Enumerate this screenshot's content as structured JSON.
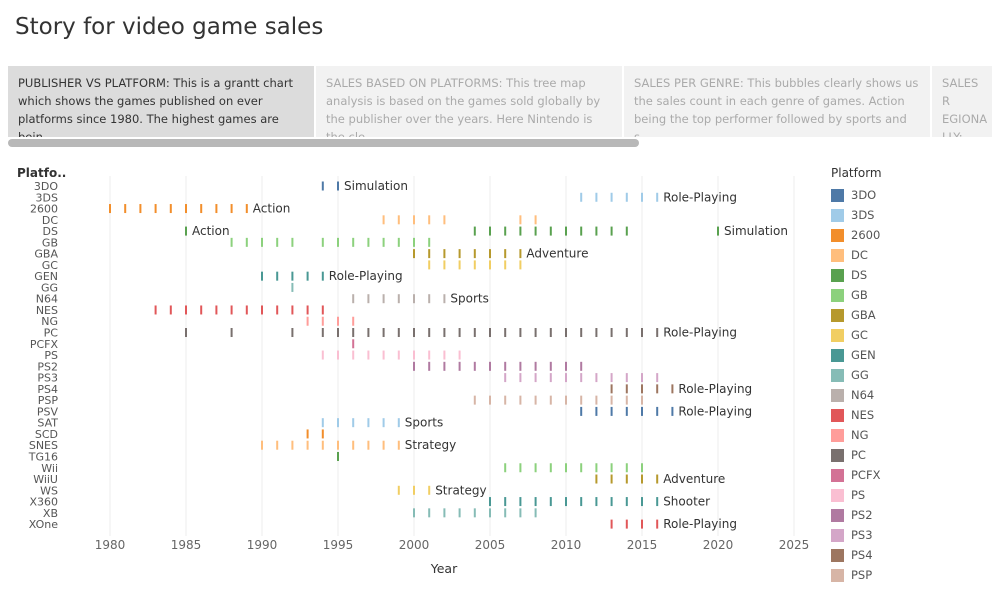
{
  "page": {
    "title": "Story for video game sales"
  },
  "tabs": [
    {
      "text": "PUBLISHER VS PLATFORM: This is a grantt chart which shows the games published on ever platforms since 1980. The highest games are bein..",
      "active": true
    },
    {
      "text": "SALES BASED ON PLATFORMS: This tree map analysis is based on the games sold globally by the publisher over the years. Here Nintendo is the cle..",
      "active": false
    },
    {
      "text": "SALES PER GENRE: This bubbles clearly shows us the sales count in each  genre of games. Action being the top performer followed by sports and s..",
      "active": false
    },
    {
      "text": "SALES R EGIONA LLY: Th..",
      "active": false
    }
  ],
  "legend": {
    "title": "Platform",
    "items": [
      "3DO",
      "3DS",
      "2600",
      "DC",
      "DS",
      "GB",
      "GBA",
      "GC",
      "GEN",
      "GG",
      "N64",
      "NES",
      "NG",
      "PC",
      "PCFX",
      "PS",
      "PS2",
      "PS3",
      "PS4",
      "PSP"
    ]
  },
  "chart_data": {
    "type": "gantt",
    "ylabel": "Platfo..",
    "xlabel": "Year",
    "xlim": [
      1977,
      2027
    ],
    "xticks": [
      1980,
      1985,
      1990,
      1995,
      2000,
      2005,
      2010,
      2015,
      2020,
      2025
    ],
    "grid": true,
    "legend_position": "right",
    "platforms": [
      "3DO",
      "3DS",
      "2600",
      "DC",
      "DS",
      "GB",
      "GBA",
      "GC",
      "GEN",
      "GG",
      "N64",
      "NES",
      "NG",
      "PC",
      "PCFX",
      "PS",
      "PS2",
      "PS3",
      "PS4",
      "PSP",
      "PSV",
      "SAT",
      "SCD",
      "SNES",
      "TG16",
      "Wii",
      "WiiU",
      "WS",
      "X360",
      "XB",
      "XOne"
    ],
    "colors": {
      "3DO": "#4e79a7",
      "3DS": "#a0cbe8",
      "2600": "#f28e2b",
      "DC": "#ffbe7d",
      "DS": "#59a14f",
      "GB": "#8cd17d",
      "GBA": "#b6992d",
      "GC": "#f1ce63",
      "GEN": "#499894",
      "GG": "#86bcb6",
      "N64": "#bab0ac",
      "NES": "#e15759",
      "NG": "#ff9d9a",
      "PC": "#79706e",
      "PCFX": "#d37295",
      "PS": "#fabfd2",
      "PS2": "#b07aa1",
      "PS3": "#d4a6c8",
      "PS4": "#9d7660",
      "PSP": "#d7b5a6",
      "PSV": "#4e79a7",
      "SAT": "#a0cbe8",
      "SCD": "#f28e2b",
      "SNES": "#ffbe7d",
      "TG16": "#59a14f",
      "Wii": "#8cd17d",
      "WiiU": "#b6992d",
      "WS": "#f1ce63",
      "X360": "#499894",
      "XB": "#86bcb6",
      "XOne": "#e15759"
    },
    "rows": [
      {
        "platform": "3DO",
        "years": [
          1994,
          1995
        ],
        "label": "Simulation"
      },
      {
        "platform": "3DS",
        "years": [
          2011,
          2012,
          2013,
          2014,
          2015,
          2016
        ],
        "label": "Role-Playing"
      },
      {
        "platform": "2600",
        "years": [
          1980,
          1981,
          1982,
          1983,
          1984,
          1985,
          1986,
          1987,
          1988,
          1989
        ],
        "label": "Action"
      },
      {
        "platform": "DC",
        "years": [
          1998,
          1999,
          2000,
          2001,
          2002,
          2007,
          2008
        ],
        "label": ""
      },
      {
        "platform": "DS",
        "years": [
          1985,
          2004,
          2005,
          2006,
          2007,
          2008,
          2009,
          2010,
          2011,
          2012,
          2013,
          2014,
          2020
        ],
        "label": "Action",
        "extra_labels": [
          {
            "year": 1985,
            "text": "Action"
          },
          {
            "year": 2020,
            "text": "Simulation"
          }
        ]
      },
      {
        "platform": "GB",
        "years": [
          1988,
          1989,
          1990,
          1991,
          1992,
          1994,
          1995,
          1996,
          1997,
          1998,
          1999,
          2000,
          2001
        ],
        "label": ""
      },
      {
        "platform": "GBA",
        "years": [
          2000,
          2001,
          2002,
          2003,
          2004,
          2005,
          2006,
          2007
        ],
        "label": "Adventure"
      },
      {
        "platform": "GC",
        "years": [
          2001,
          2002,
          2003,
          2004,
          2005,
          2006,
          2007
        ],
        "label": ""
      },
      {
        "platform": "GEN",
        "years": [
          1990,
          1991,
          1992,
          1993,
          1994
        ],
        "label": "Role-Playing"
      },
      {
        "platform": "GG",
        "years": [
          1992
        ],
        "label": ""
      },
      {
        "platform": "N64",
        "years": [
          1996,
          1997,
          1998,
          1999,
          2000,
          2001,
          2002
        ],
        "label": "Sports"
      },
      {
        "platform": "NES",
        "years": [
          1983,
          1984,
          1985,
          1986,
          1987,
          1988,
          1989,
          1990,
          1991,
          1992,
          1993,
          1994
        ],
        "label": ""
      },
      {
        "platform": "NG",
        "years": [
          1993,
          1994,
          1995,
          1996
        ],
        "label": ""
      },
      {
        "platform": "PC",
        "years": [
          1985,
          1988,
          1992,
          1994,
          1995,
          1996,
          1997,
          1998,
          1999,
          2000,
          2001,
          2002,
          2003,
          2004,
          2005,
          2006,
          2007,
          2008,
          2009,
          2010,
          2011,
          2012,
          2013,
          2014,
          2015,
          2016
        ],
        "label": "Role-Playing"
      },
      {
        "platform": "PCFX",
        "years": [
          1996
        ],
        "label": ""
      },
      {
        "platform": "PS",
        "years": [
          1994,
          1995,
          1996,
          1997,
          1998,
          1999,
          2000,
          2001,
          2002,
          2003
        ],
        "label": ""
      },
      {
        "platform": "PS2",
        "years": [
          2000,
          2001,
          2002,
          2003,
          2004,
          2005,
          2006,
          2007,
          2008,
          2009,
          2010,
          2011
        ],
        "label": ""
      },
      {
        "platform": "PS3",
        "years": [
          2006,
          2007,
          2008,
          2009,
          2010,
          2011,
          2012,
          2013,
          2014,
          2015,
          2016
        ],
        "label": ""
      },
      {
        "platform": "PS4",
        "years": [
          2013,
          2014,
          2015,
          2016,
          2017
        ],
        "label": "Role-Playing"
      },
      {
        "platform": "PSP",
        "years": [
          2004,
          2005,
          2006,
          2007,
          2008,
          2009,
          2010,
          2011,
          2012,
          2013,
          2014,
          2015
        ],
        "label": ""
      },
      {
        "platform": "PSV",
        "years": [
          2011,
          2012,
          2013,
          2014,
          2015,
          2016,
          2017
        ],
        "label": "Role-Playing"
      },
      {
        "platform": "SAT",
        "years": [
          1994,
          1995,
          1996,
          1997,
          1998,
          1999
        ],
        "label": "Sports"
      },
      {
        "platform": "SCD",
        "years": [
          1993,
          1994
        ],
        "label": ""
      },
      {
        "platform": "SNES",
        "years": [
          1990,
          1991,
          1992,
          1993,
          1994,
          1995,
          1996,
          1997,
          1998,
          1999
        ],
        "label": "Strategy"
      },
      {
        "platform": "TG16",
        "years": [
          1995
        ],
        "label": ""
      },
      {
        "platform": "Wii",
        "years": [
          2006,
          2007,
          2008,
          2009,
          2010,
          2011,
          2012,
          2013,
          2014,
          2015
        ],
        "label": ""
      },
      {
        "platform": "WiiU",
        "years": [
          2012,
          2013,
          2014,
          2015,
          2016
        ],
        "label": "Adventure"
      },
      {
        "platform": "WS",
        "years": [
          1999,
          2000,
          2001
        ],
        "label": "Strategy"
      },
      {
        "platform": "X360",
        "years": [
          2005,
          2006,
          2007,
          2008,
          2009,
          2010,
          2011,
          2012,
          2013,
          2014,
          2015,
          2016
        ],
        "label": "Shooter"
      },
      {
        "platform": "XB",
        "years": [
          2000,
          2001,
          2002,
          2003,
          2004,
          2005,
          2006,
          2007,
          2008
        ],
        "label": ""
      },
      {
        "platform": "XOne",
        "years": [
          2013,
          2014,
          2015,
          2016
        ],
        "label": "Role-Playing"
      }
    ]
  }
}
